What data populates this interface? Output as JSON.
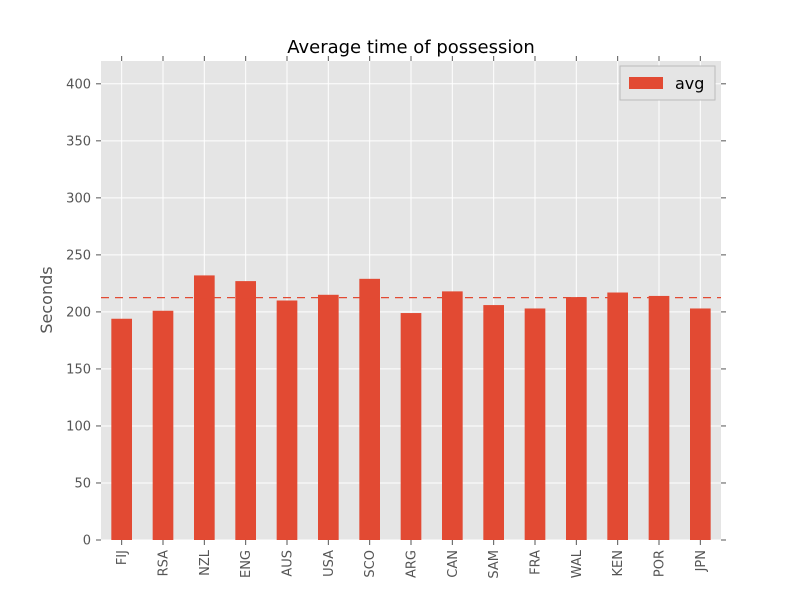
{
  "chart_data": {
    "type": "bar",
    "title": "Average time of possession",
    "xlabel": "",
    "ylabel": "Seconds",
    "categories": [
      "FIJ",
      "RSA",
      "NZL",
      "ENG",
      "AUS",
      "USA",
      "SCO",
      "ARG",
      "CAN",
      "SAM",
      "FRA",
      "WAL",
      "KEN",
      "POR",
      "JPN"
    ],
    "series": [
      {
        "name": "avg",
        "color": "#e24a33",
        "values": [
          194,
          201,
          232,
          227,
          210,
          215,
          229,
          199,
          218,
          206,
          203,
          213,
          217,
          214,
          203
        ]
      }
    ],
    "reference_line": {
      "value": 212.5,
      "style": "dashed",
      "color": "#e24a33"
    },
    "ylim": [
      0,
      420
    ],
    "yticks": [
      0,
      50,
      100,
      150,
      200,
      250,
      300,
      350,
      400
    ],
    "grid": true,
    "legend_position": "top-right",
    "plot_background": "#e5e5e5"
  }
}
